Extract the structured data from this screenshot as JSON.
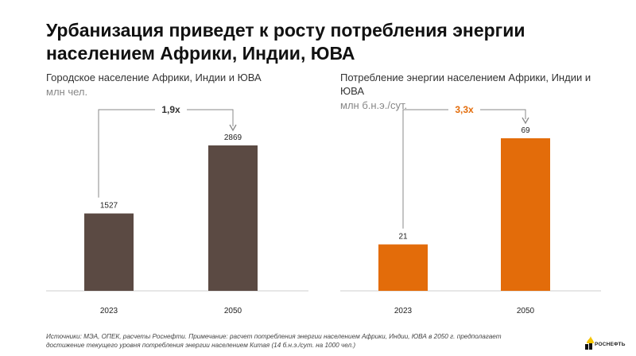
{
  "title": "Урбанизация приведет к росту потребления энергии населением Африки, Индии, ЮВА",
  "footnote": "Источники: МЭА, ОПЕК, расчеты Роснефти. Примечание: расчет потребления энергии населением Африки, Индии, ЮВА в 2050 г. предполагает достижение текущего уровня потребления энергии населением Китая (14 б.н.э./сут. на 1000 чел.)",
  "logo_text": "РОСНЕФТЬ",
  "colors": {
    "left_bar": "#5b4a43",
    "right_bar": "#e36c0a",
    "arrow": "#888888"
  },
  "chart_data": [
    {
      "type": "bar",
      "title": "Городское население Африки, Индии и ЮВА",
      "unit": "млн чел.",
      "categories": [
        "2023",
        "2050"
      ],
      "values": [
        1527,
        2869
      ],
      "value_labels": [
        "1527",
        "2869"
      ],
      "growth_label": "1,9x",
      "color": "#5b4a43",
      "growth_color": "#333333"
    },
    {
      "type": "bar",
      "title": "Потребление энергии населением Африки, Индии и ЮВА",
      "unit": "млн б.н.э./сут.",
      "categories": [
        "2023",
        "2050"
      ],
      "values": [
        21,
        69
      ],
      "value_labels": [
        "21",
        "69"
      ],
      "growth_label": "3,3x",
      "color": "#e36c0a",
      "growth_color": "#e36c0a"
    }
  ]
}
